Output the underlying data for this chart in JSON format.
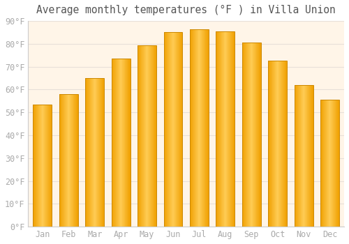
{
  "title": "Average monthly temperatures (°F ) in Villa Union",
  "months": [
    "Jan",
    "Feb",
    "Mar",
    "Apr",
    "May",
    "Jun",
    "Jul",
    "Aug",
    "Sep",
    "Oct",
    "Nov",
    "Dec"
  ],
  "values": [
    53.5,
    58.0,
    65.0,
    73.5,
    79.5,
    85.0,
    86.5,
    85.5,
    80.5,
    72.5,
    62.0,
    55.5
  ],
  "ylim": [
    0,
    90
  ],
  "yticks": [
    0,
    10,
    20,
    30,
    40,
    50,
    60,
    70,
    80,
    90
  ],
  "ytick_labels": [
    "0°F",
    "10°F",
    "20°F",
    "30°F",
    "40°F",
    "50°F",
    "60°F",
    "70°F",
    "80°F",
    "90°F"
  ],
  "bar_color_center": "#FFCC55",
  "bar_color_edge": "#F5A000",
  "bar_outline_color": "#CC8800",
  "background_color": "#FFF5E8",
  "fig_background_color": "#FFFFFF",
  "grid_color": "#E8E0D8",
  "title_fontsize": 10.5,
  "tick_fontsize": 8.5,
  "tick_color": "#AAAAAA",
  "title_color": "#555555",
  "bar_width": 0.72
}
